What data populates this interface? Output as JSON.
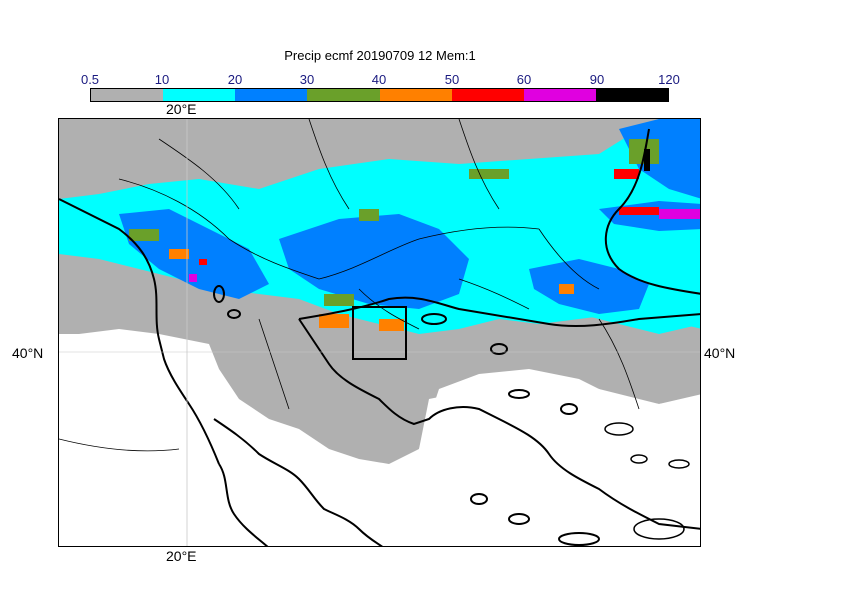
{
  "title": "Precip ecmf 20190709 12 Mem:1",
  "colorbar": {
    "ticks": [
      "0.5",
      "10",
      "20",
      "30",
      "40",
      "50",
      "60",
      "90",
      "120"
    ],
    "colors": [
      "#b0b0b0",
      "#00ffff",
      "#0080ff",
      "#6aa02a",
      "#ff8000",
      "#ff0000",
      "#e000e0",
      "#000000"
    ]
  },
  "map": {
    "lon_label_top": "20°E",
    "lon_label_bottom": "20°E",
    "lat_label_left": "40°N",
    "lat_label_right": "40°N"
  }
}
